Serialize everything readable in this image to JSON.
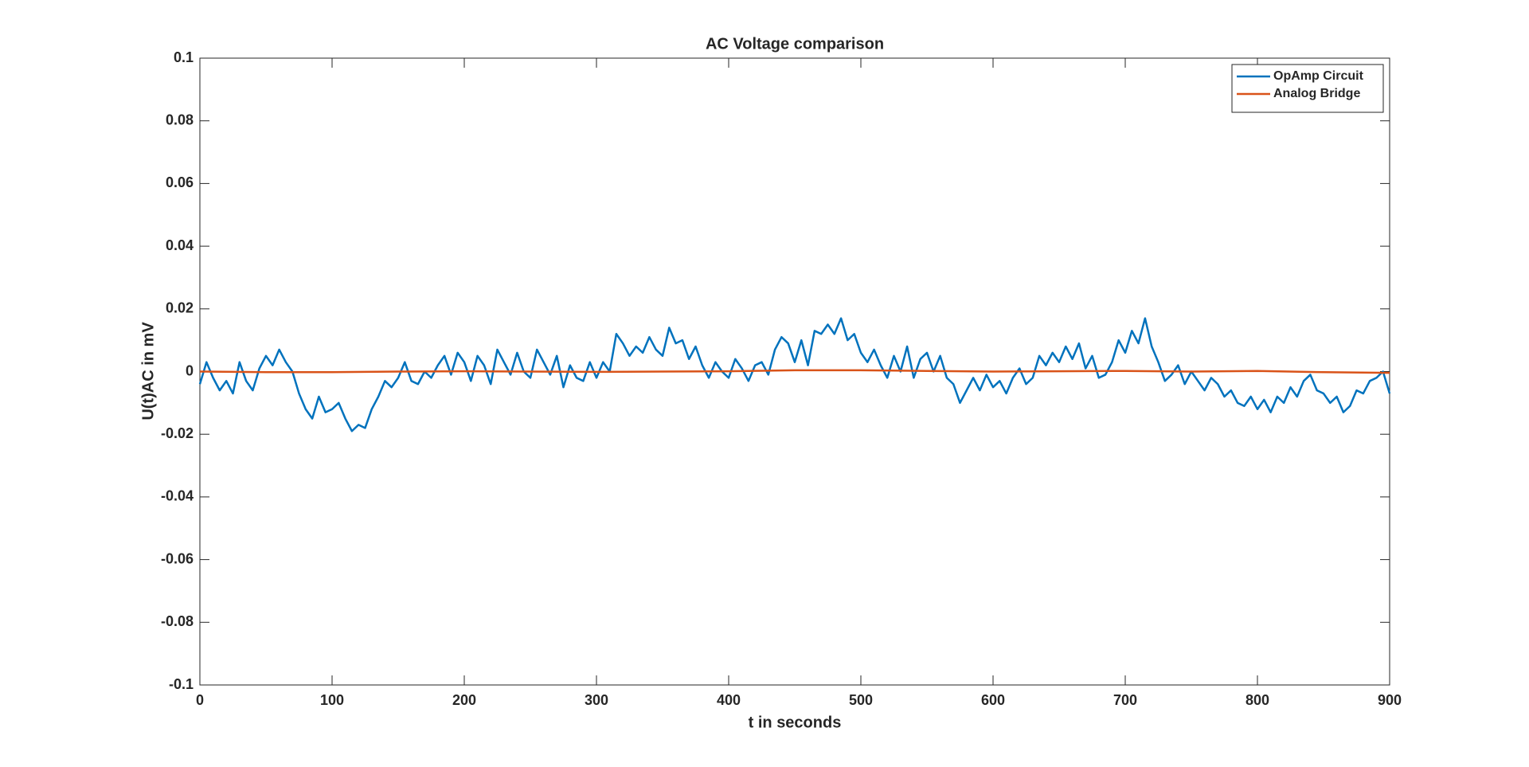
{
  "chart_data": {
    "type": "line",
    "title": "AC Voltage comparison",
    "x_label": "t in seconds",
    "y_label": "U(t)AC in mV",
    "xlim": [
      0,
      900
    ],
    "xticks": [
      0,
      100,
      200,
      300,
      400,
      500,
      600,
      700,
      800,
      900
    ],
    "ylim": [
      -0.1,
      0.1
    ],
    "yticks": [
      -0.1,
      -0.08,
      -0.06,
      -0.04,
      -0.02,
      0,
      0.02,
      0.04,
      0.06,
      0.08,
      0.1
    ],
    "grid": false,
    "legend": "upper right",
    "series": [
      {
        "name": "OpAmp Circuit",
        "color": "#0072bd",
        "x": [
          0,
          5,
          10,
          15,
          20,
          25,
          30,
          35,
          40,
          45,
          50,
          55,
          60,
          65,
          70,
          75,
          80,
          85,
          90,
          95,
          100,
          105,
          110,
          115,
          120,
          125,
          130,
          135,
          140,
          145,
          150,
          155,
          160,
          165,
          170,
          175,
          180,
          185,
          190,
          195,
          200,
          205,
          210,
          215,
          220,
          225,
          230,
          235,
          240,
          245,
          250,
          255,
          260,
          265,
          270,
          275,
          280,
          285,
          290,
          295,
          300,
          305,
          310,
          315,
          320,
          325,
          330,
          335,
          340,
          345,
          350,
          355,
          360,
          365,
          370,
          375,
          380,
          385,
          390,
          395,
          400,
          405,
          410,
          415,
          420,
          425,
          430,
          435,
          440,
          445,
          450,
          455,
          460,
          465,
          470,
          475,
          480,
          485,
          490,
          495,
          500,
          505,
          510,
          515,
          520,
          525,
          530,
          535,
          540,
          545,
          550,
          555,
          560,
          565,
          570,
          575,
          580,
          585,
          590,
          595,
          600,
          605,
          610,
          615,
          620,
          625,
          630,
          635,
          640,
          645,
          650,
          655,
          660,
          665,
          670,
          675,
          680,
          685,
          690,
          695,
          700,
          705,
          710,
          715,
          720,
          725,
          730,
          735,
          740,
          745,
          750,
          755,
          760,
          765,
          770,
          775,
          780,
          785,
          790,
          795,
          800,
          805,
          810,
          815,
          820,
          825,
          830,
          835,
          840,
          845,
          850,
          855,
          860,
          865,
          870,
          875,
          880,
          885,
          890,
          895,
          900
        ],
        "values": [
          -0.004,
          0.003,
          -0.002,
          -0.006,
          -0.003,
          -0.007,
          0.003,
          -0.003,
          -0.006,
          0.001,
          0.005,
          0.002,
          0.007,
          0.003,
          0,
          -0.007,
          -0.012,
          -0.015,
          -0.008,
          -0.013,
          -0.012,
          -0.01,
          -0.015,
          -0.019,
          -0.017,
          -0.018,
          -0.012,
          -0.008,
          -0.003,
          -0.005,
          -0.002,
          0.003,
          -0.003,
          -0.004,
          0,
          -0.002,
          0.002,
          0.005,
          -0.001,
          0.006,
          0.003,
          -0.003,
          0.005,
          0.002,
          -0.004,
          0.007,
          0.003,
          -0.001,
          0.006,
          0,
          -0.002,
          0.007,
          0.003,
          -0.001,
          0.005,
          -0.005,
          0.002,
          -0.002,
          -0.003,
          0.003,
          -0.002,
          0.003,
          0,
          0.012,
          0.009,
          0.005,
          0.008,
          0.006,
          0.011,
          0.007,
          0.005,
          0.014,
          0.009,
          0.01,
          0.004,
          0.008,
          0.002,
          -0.002,
          0.003,
          0,
          -0.002,
          0.004,
          0.001,
          -0.003,
          0.002,
          0.003,
          -0.001,
          0.007,
          0.011,
          0.009,
          0.003,
          0.01,
          0.002,
          0.013,
          0.012,
          0.015,
          0.012,
          0.017,
          0.01,
          0.012,
          0.006,
          0.003,
          0.007,
          0.002,
          -0.002,
          0.005,
          0,
          0.008,
          -0.002,
          0.004,
          0.006,
          0,
          0.005,
          -0.002,
          -0.004,
          -0.01,
          -0.006,
          -0.002,
          -0.006,
          -0.001,
          -0.005,
          -0.003,
          -0.007,
          -0.002,
          0.001,
          -0.004,
          -0.002,
          0.005,
          0.002,
          0.006,
          0.003,
          0.008,
          0.004,
          0.009,
          0.001,
          0.005,
          -0.002,
          -0.001,
          0.003,
          0.01,
          0.006,
          0.013,
          0.009,
          0.017,
          0.008,
          0.003,
          -0.003,
          -0.001,
          0.002,
          -0.004,
          0,
          -0.003,
          -0.006,
          -0.002,
          -0.004,
          -0.008,
          -0.006,
          -0.01,
          -0.011,
          -0.008,
          -0.012,
          -0.009,
          -0.013,
          -0.008,
          -0.01,
          -0.005,
          -0.008,
          -0.003,
          -0.001,
          -0.006,
          -0.007,
          -0.01,
          -0.008,
          -0.013,
          -0.011,
          -0.006,
          -0.007,
          -0.003,
          -0.002,
          0,
          -0.007
        ]
      },
      {
        "name": "Analog Bridge",
        "color": "#d95319",
        "x": [
          0,
          50,
          100,
          150,
          200,
          250,
          300,
          350,
          400,
          450,
          500,
          550,
          600,
          650,
          700,
          750,
          800,
          850,
          900
        ],
        "values": [
          0,
          -0.0002,
          -0.0002,
          0,
          0.0001,
          0,
          -0.0001,
          0,
          0.0001,
          0.0004,
          0.0004,
          0.0002,
          0,
          0.0001,
          0.0002,
          0,
          0.0002,
          -0.0002,
          -0.0004
        ]
      }
    ]
  }
}
